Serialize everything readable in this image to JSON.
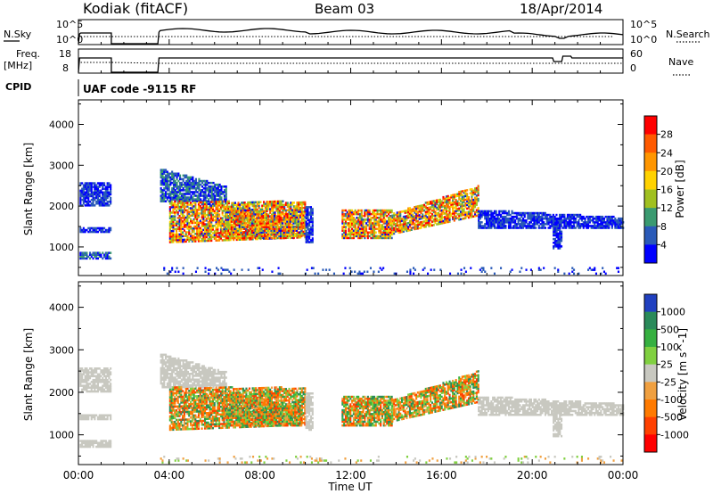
{
  "header": {
    "title": "Kodiak (fitACF)",
    "beam": "Beam 03",
    "date": "18/Apr/2014"
  },
  "status_panel": {
    "nsky_label": "N.Sky",
    "nsearch_label": "N.Search",
    "left_ticks": [
      "10^5",
      "10^0"
    ],
    "right_ticks": [
      "10^5",
      "10^0"
    ],
    "freq_label_1": "Freq.",
    "freq_label_2": "[MHz]",
    "freq_ticks": [
      "18",
      "8"
    ],
    "nave_label": "Nave",
    "nave_ticks": [
      "60",
      "0"
    ],
    "cpid_label": "CPID",
    "cpid_text": "UAF code -9115 RF"
  },
  "chart_data": [
    {
      "type": "heatmap",
      "name": "power",
      "ylabel": "Slant Range [km]",
      "ylim": [
        300,
        4600
      ],
      "yticks": [
        1000,
        2000,
        3000,
        4000
      ],
      "colorbar_label": "Power [dB]",
      "colorbar_ticks": [
        "28",
        "24",
        "20",
        "16",
        "12",
        "8",
        "4"
      ],
      "colorbar_colors": [
        "#ff0000",
        "#ff5a00",
        "#ff9600",
        "#ffd200",
        "#a0c020",
        "#3a9a70",
        "#2a5ab8",
        "#0000ff"
      ],
      "xticks": [
        "00:00",
        "04:00",
        "08:00",
        "12:00",
        "16:00",
        "20:00",
        "00:00"
      ]
    },
    {
      "type": "heatmap",
      "name": "velocity",
      "ylabel": "Slant Range [km]",
      "ylim": [
        300,
        4600
      ],
      "yticks": [
        1000,
        2000,
        3000,
        4000
      ],
      "colorbar_label": "Velocity [m s^-1]",
      "colorbar_ticks": [
        "1000",
        "500",
        "100",
        "25",
        "-25",
        "-100",
        "-500",
        "-1000"
      ],
      "colorbar_colors": [
        "#2040c0",
        "#2a8a5a",
        "#36b040",
        "#80d040",
        "#c8c8c0",
        "#f0a040",
        "#ff7a00",
        "#ff4000",
        "#ff0000"
      ],
      "xticks": [
        "00:00",
        "04:00",
        "08:00",
        "12:00",
        "16:00",
        "20:00",
        "00:00"
      ],
      "xlabel": "Time UT"
    }
  ]
}
